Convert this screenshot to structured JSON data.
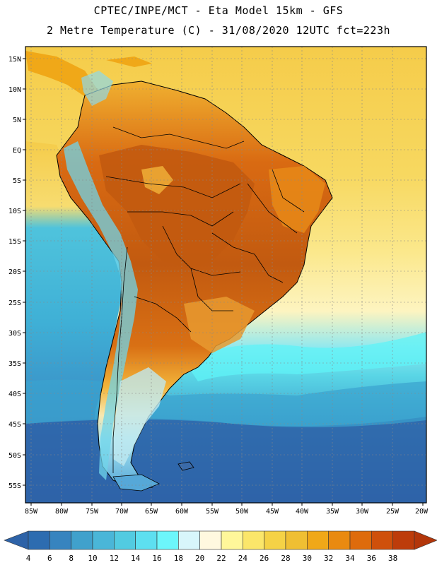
{
  "header": {
    "line1": "CPTEC/INPE/MCT -  Eta Model 15km - GFS",
    "line2": "2 Metre Temperature (C) - 31/08/2020 12UTC fct=223h"
  },
  "map": {
    "lat_labels": [
      "15N",
      "10N",
      "5N",
      "EQ",
      "5S",
      "10S",
      "15S",
      "20S",
      "25S",
      "30S",
      "35S",
      "40S",
      "45S",
      "50S",
      "55S"
    ],
    "lon_labels": [
      "85W",
      "80W",
      "75W",
      "70W",
      "65W",
      "60W",
      "55W",
      "50W",
      "45W",
      "40W",
      "35W",
      "30W",
      "25W",
      "20W"
    ],
    "palette": {
      "ocean_south": "#2e63a8",
      "ocean_mid": "#3aa3cf",
      "ocean_warm": "#4fc3dc",
      "cyan": "#5ff3f7",
      "land_amazon": "#c25a10",
      "land_hot": "#d96a12",
      "land_warm": "#e88a18",
      "land_mild": "#f2b43a",
      "sea_tropical": "#f5cc4a",
      "sea_yellow": "#fbe37a",
      "sea_pale": "#fcf3b0",
      "andes": "#6fd4ea"
    }
  },
  "legend": {
    "ticks": [
      "4",
      "6",
      "8",
      "10",
      "12",
      "14",
      "16",
      "18",
      "20",
      "22",
      "24",
      "26",
      "28",
      "30",
      "32",
      "34",
      "36",
      "38"
    ],
    "colors": [
      "#2d6cb0",
      "#3784bf",
      "#40a1cc",
      "#4ab6d8",
      "#52cbe1",
      "#5ddff0",
      "#6cf6fb",
      "#d8f6fb",
      "#fff8df",
      "#fff79a",
      "#fbe66a",
      "#f5d246",
      "#efbf33",
      "#f0a818",
      "#e98a10",
      "#de6b0c",
      "#cf500b",
      "#bd3c0a"
    ],
    "left_arrow_color": "#2e63a8",
    "right_arrow_color": "#b3360a"
  }
}
